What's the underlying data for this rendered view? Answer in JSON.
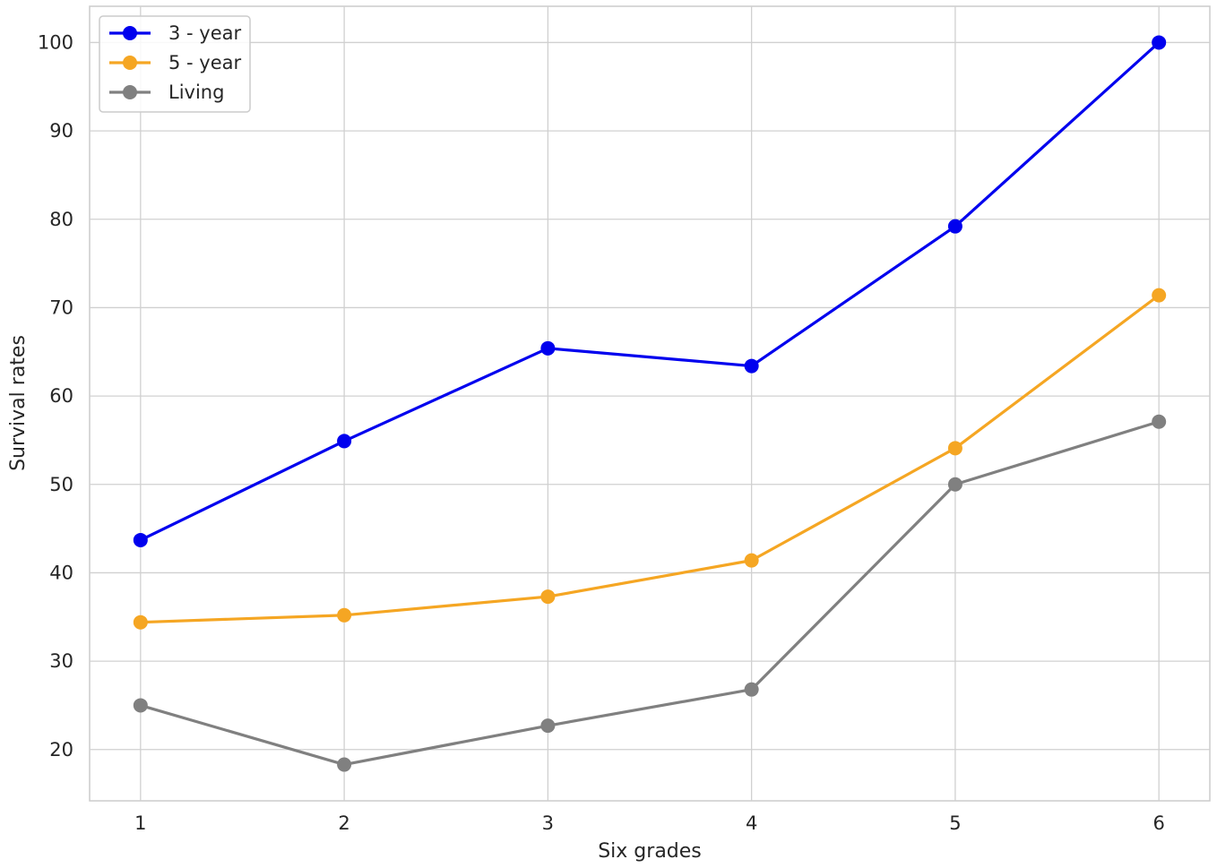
{
  "chart_data": {
    "type": "line",
    "title": "",
    "xlabel": "Six grades",
    "ylabel": "Survival rates",
    "x": [
      1,
      2,
      3,
      4,
      5,
      6
    ],
    "x_tick_labels": [
      "1",
      "2",
      "3",
      "4",
      "5",
      "6"
    ],
    "y_tick_labels": [
      "20",
      "30",
      "40",
      "50",
      "60",
      "70",
      "80",
      "90",
      "100"
    ],
    "xlim": [
      0.75,
      6.25
    ],
    "ylim": [
      14.2,
      104.1
    ],
    "grid": true,
    "legend_position": "top-left",
    "series": [
      {
        "name": "3 - year",
        "color": "#0000ee",
        "values": [
          43.7,
          54.9,
          65.4,
          63.4,
          79.2,
          100.0
        ]
      },
      {
        "name": "5 - year",
        "color": "#f5a623",
        "values": [
          34.4,
          35.2,
          37.3,
          41.4,
          54.1,
          71.4
        ]
      },
      {
        "name": "Living",
        "color": "#808080",
        "values": [
          25.0,
          18.3,
          22.7,
          26.8,
          50.0,
          57.1
        ]
      }
    ]
  }
}
